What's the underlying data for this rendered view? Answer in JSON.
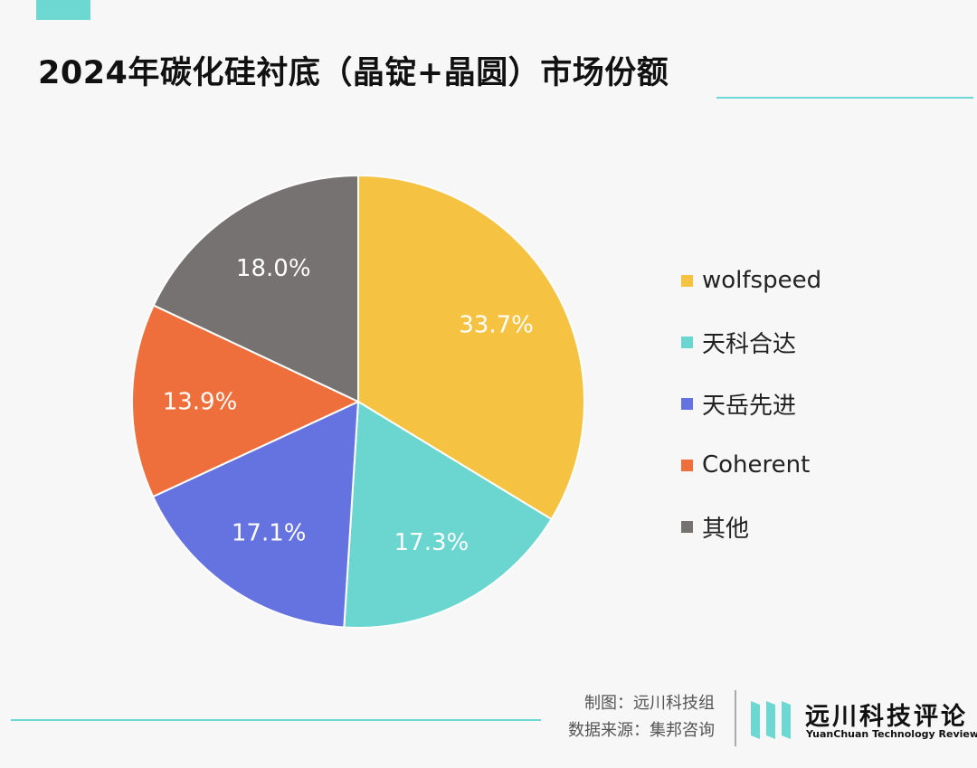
{
  "header": {
    "title": "2024年碳化硅衬底（晶锭+晶圆）市场份额"
  },
  "colors": {
    "accent": "#6dd8d1",
    "wolfspeed": "#f5c242",
    "tianke": "#6bd6cf",
    "tianyue": "#6573e0",
    "coherent": "#ee6f3b",
    "other": "#767271"
  },
  "chart_data": {
    "type": "pie",
    "title": "2024年碳化硅衬底（晶锭+晶圆）市场份额",
    "start_angle_deg": 0,
    "direction": "clockwise",
    "legend_position": "right",
    "slices": [
      {
        "label": "wolfspeed",
        "value": 33.7,
        "value_label": "33.7%",
        "color": "#f5c242",
        "label_color": "#ffffff"
      },
      {
        "label": "天科合达",
        "value": 17.3,
        "value_label": "17.3%",
        "color": "#6bd6cf",
        "label_color": "#ffffff"
      },
      {
        "label": "天岳先进",
        "value": 17.1,
        "value_label": "17.1%",
        "color": "#6573e0",
        "label_color": "#ffffff"
      },
      {
        "label": "Coherent",
        "value": 13.9,
        "value_label": "13.9%",
        "color": "#ee6f3b",
        "label_color": "#ffffff"
      },
      {
        "label": "其他",
        "value": 18.0,
        "value_label": "18.0%",
        "color": "#767271",
        "label_color": "#ffffff"
      }
    ]
  },
  "legend": {
    "items": [
      {
        "label": "wolfspeed",
        "color": "#f5c242"
      },
      {
        "label": "天科合达",
        "color": "#6bd6cf"
      },
      {
        "label": "天岳先进",
        "color": "#6573e0"
      },
      {
        "label": "Coherent",
        "color": "#ee6f3b"
      },
      {
        "label": "其他",
        "color": "#767271"
      }
    ]
  },
  "footer": {
    "credit_line": "制图：远川科技组",
    "source_line": "数据来源：集邦咨询",
    "brand_name": "远川科技评论",
    "brand_sub": "YuanChuan Technology Review"
  }
}
